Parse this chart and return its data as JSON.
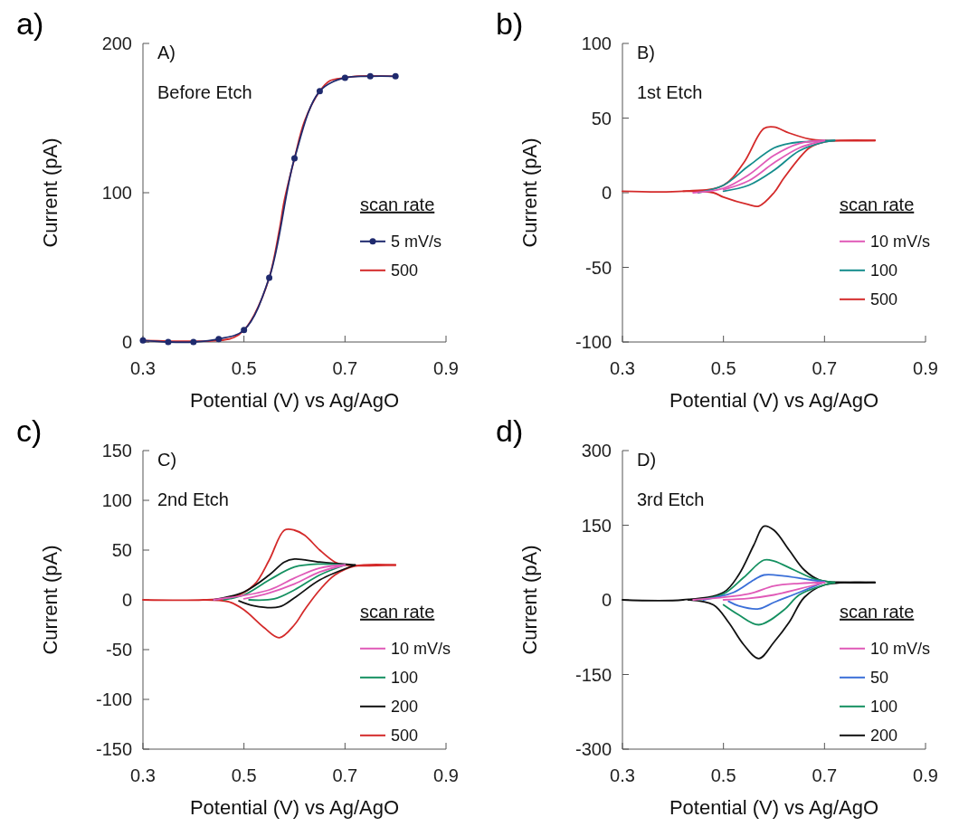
{
  "chart_data": [
    {
      "type": "line",
      "title": "a)",
      "annotations": [
        "A)",
        "Before Etch"
      ],
      "xlabel": "Potential (V) vs Ag/AgO",
      "ylabel": "Current (pA)",
      "legend_title": "scan rate",
      "legend": "right",
      "xlim": [
        0.3,
        0.9
      ],
      "xticks": [
        0.3,
        0.5,
        0.7,
        0.9
      ],
      "ylim": [
        0,
        200
      ],
      "yticks": [
        0,
        100,
        200
      ],
      "series": [
        {
          "name": "5 mV/s",
          "color": "#1f2a6e",
          "marker": "circle",
          "x": [
            0.3,
            0.35,
            0.4,
            0.45,
            0.5,
            0.55,
            0.6,
            0.65,
            0.7,
            0.75,
            0.8
          ],
          "values": [
            1,
            0,
            0,
            2,
            8,
            43,
            123,
            168,
            177,
            178,
            178
          ]
        },
        {
          "name": "500",
          "color": "#d42a2a",
          "x": [
            0.3,
            0.45,
            0.48,
            0.5,
            0.52,
            0.55,
            0.57,
            0.58,
            0.6,
            0.62,
            0.65,
            0.67,
            0.7,
            0.72,
            0.8
          ],
          "values": [
            1,
            1,
            3,
            8,
            18,
            43,
            75,
            95,
            123,
            148,
            168,
            175,
            177,
            178,
            178
          ]
        }
      ]
    },
    {
      "type": "line",
      "title": "b)",
      "annotations": [
        "B)",
        "1st Etch"
      ],
      "xlabel": "Potential (V) vs Ag/AgO",
      "ylabel": "Current (pA)",
      "legend_title": "scan rate",
      "legend": "right",
      "xlim": [
        0.3,
        0.9
      ],
      "xticks": [
        0.3,
        0.5,
        0.7,
        0.9
      ],
      "ylim": [
        -100,
        100
      ],
      "yticks": [
        -100,
        -50,
        0,
        50,
        100
      ],
      "series": [
        {
          "name": "10 mV/s",
          "color": "#e05ab8",
          "x": [
            0.44,
            0.5,
            0.55,
            0.6,
            0.65,
            0.7
          ],
          "values": [
            0,
            3,
            12,
            25,
            33,
            35
          ]
        },
        {
          "color": "#e05ab8",
          "x": [
            0.7,
            0.65,
            0.6,
            0.55,
            0.5
          ],
          "values": [
            35,
            30,
            20,
            8,
            2
          ]
        },
        {
          "name": "100",
          "color": "#148c8c",
          "x": [
            0.45,
            0.5,
            0.55,
            0.6,
            0.63,
            0.72
          ],
          "values": [
            0,
            5,
            18,
            30,
            33,
            35
          ]
        },
        {
          "color": "#148c8c",
          "x": [
            0.72,
            0.7,
            0.65,
            0.6,
            0.55,
            0.5
          ],
          "values": [
            35,
            34,
            28,
            15,
            5,
            1
          ]
        },
        {
          "name": "500",
          "color": "#d42a2a",
          "x": [
            0.3,
            0.42,
            0.5,
            0.54,
            0.58,
            0.6,
            0.63,
            0.67,
            0.7,
            0.8
          ],
          "values": [
            1,
            1,
            5,
            20,
            43,
            44,
            40,
            36,
            35,
            35
          ]
        },
        {
          "color": "#d42a2a",
          "x": [
            0.8,
            0.7,
            0.67,
            0.62,
            0.6,
            0.57,
            0.55,
            0.5,
            0.48,
            0.42
          ],
          "values": [
            35,
            34,
            30,
            10,
            0,
            -9,
            -8,
            -3,
            0,
            1
          ]
        }
      ]
    },
    {
      "type": "line",
      "title": "c)",
      "annotations": [
        "C)",
        "2nd Etch"
      ],
      "xlabel": "Potential (V) vs Ag/AgO",
      "ylabel": "Current (pA)",
      "legend_title": "scan rate",
      "legend": "right",
      "xlim": [
        0.3,
        0.9
      ],
      "xticks": [
        0.3,
        0.5,
        0.7,
        0.9
      ],
      "ylim": [
        -150,
        150
      ],
      "yticks": [
        -150,
        -100,
        -50,
        0,
        50,
        100,
        150
      ],
      "series": [
        {
          "name": "10 mV/s",
          "color": "#e05ab8",
          "x": [
            0.44,
            0.55,
            0.6,
            0.65,
            0.7
          ],
          "values": [
            0,
            10,
            22,
            32,
            35
          ]
        },
        {
          "color": "#e05ab8",
          "x": [
            0.7,
            0.65,
            0.6,
            0.55,
            0.5
          ],
          "values": [
            35,
            28,
            16,
            7,
            1
          ]
        },
        {
          "name": "100",
          "color": "#149060",
          "x": [
            0.46,
            0.5,
            0.55,
            0.6,
            0.65,
            0.7
          ],
          "values": [
            0,
            5,
            20,
            33,
            36,
            35
          ]
        },
        {
          "color": "#149060",
          "x": [
            0.7,
            0.65,
            0.6,
            0.56,
            0.51
          ],
          "values": [
            35,
            25,
            10,
            1,
            0
          ]
        },
        {
          "name": "200",
          "color": "#111111",
          "x": [
            0.44,
            0.5,
            0.55,
            0.58,
            0.6,
            0.65,
            0.72
          ],
          "values": [
            0,
            8,
            25,
            38,
            41,
            38,
            35
          ]
        },
        {
          "color": "#111111",
          "x": [
            0.72,
            0.65,
            0.6,
            0.57,
            0.52,
            0.49
          ],
          "values": [
            35,
            20,
            2,
            -7,
            -6,
            -1
          ]
        },
        {
          "name": "500",
          "color": "#d42a2a",
          "x": [
            0.3,
            0.42,
            0.48,
            0.52,
            0.55,
            0.58,
            0.6,
            0.62,
            0.65,
            0.68,
            0.7,
            0.8
          ],
          "values": [
            0,
            0,
            3,
            15,
            40,
            70,
            70,
            65,
            50,
            38,
            35,
            35
          ]
        },
        {
          "color": "#d42a2a",
          "x": [
            0.8,
            0.72,
            0.68,
            0.65,
            0.62,
            0.6,
            0.57,
            0.54,
            0.5,
            0.47,
            0.42
          ],
          "values": [
            35,
            34,
            25,
            10,
            -10,
            -25,
            -38,
            -28,
            -10,
            -2,
            0
          ]
        }
      ]
    },
    {
      "type": "line",
      "title": "d)",
      "annotations": [
        "D)",
        "3rd Etch"
      ],
      "xlabel": "Potential (V) vs Ag/AgO",
      "ylabel": "Current (pA)",
      "legend_title": "scan rate",
      "legend": "right",
      "xlim": [
        0.3,
        0.9
      ],
      "xticks": [
        0.3,
        0.5,
        0.7,
        0.9
      ],
      "ylim": [
        -300,
        300
      ],
      "yticks": [
        -300,
        -150,
        0,
        150,
        300
      ],
      "series": [
        {
          "name": "10 mV/s",
          "color": "#e05ab8",
          "x": [
            0.44,
            0.55,
            0.6,
            0.65,
            0.7
          ],
          "values": [
            0,
            12,
            28,
            33,
            35
          ]
        },
        {
          "color": "#e05ab8",
          "x": [
            0.7,
            0.65,
            0.6,
            0.55,
            0.5
          ],
          "values": [
            35,
            22,
            10,
            3,
            0
          ]
        },
        {
          "name": "50",
          "color": "#3a6fd8",
          "x": [
            0.46,
            0.52,
            0.56,
            0.58,
            0.62,
            0.66,
            0.7
          ],
          "values": [
            0,
            15,
            40,
            50,
            48,
            42,
            36
          ]
        },
        {
          "color": "#3a6fd8",
          "x": [
            0.7,
            0.65,
            0.6,
            0.57,
            0.53,
            0.51
          ],
          "values": [
            36,
            15,
            -5,
            -18,
            -12,
            -3
          ]
        },
        {
          "name": "100",
          "color": "#149060",
          "x": [
            0.45,
            0.5,
            0.54,
            0.58,
            0.6,
            0.64,
            0.68,
            0.72
          ],
          "values": [
            0,
            12,
            45,
            80,
            78,
            60,
            42,
            35
          ]
        },
        {
          "color": "#149060",
          "x": [
            0.72,
            0.7,
            0.65,
            0.62,
            0.57,
            0.53,
            0.5
          ],
          "values": [
            35,
            30,
            10,
            -20,
            -50,
            -30,
            -10
          ]
        },
        {
          "name": "200",
          "color": "#111111",
          "x": [
            0.3,
            0.42,
            0.5,
            0.53,
            0.56,
            0.58,
            0.6,
            0.63,
            0.66,
            0.69,
            0.74,
            0.8
          ],
          "values": [
            0,
            0,
            15,
            50,
            110,
            148,
            140,
            100,
            60,
            40,
            35,
            35
          ]
        },
        {
          "color": "#111111",
          "x": [
            0.8,
            0.7,
            0.66,
            0.63,
            0.6,
            0.57,
            0.54,
            0.51,
            0.48,
            0.43
          ],
          "values": [
            35,
            30,
            5,
            -45,
            -85,
            -118,
            -90,
            -45,
            -10,
            0
          ]
        }
      ]
    }
  ]
}
